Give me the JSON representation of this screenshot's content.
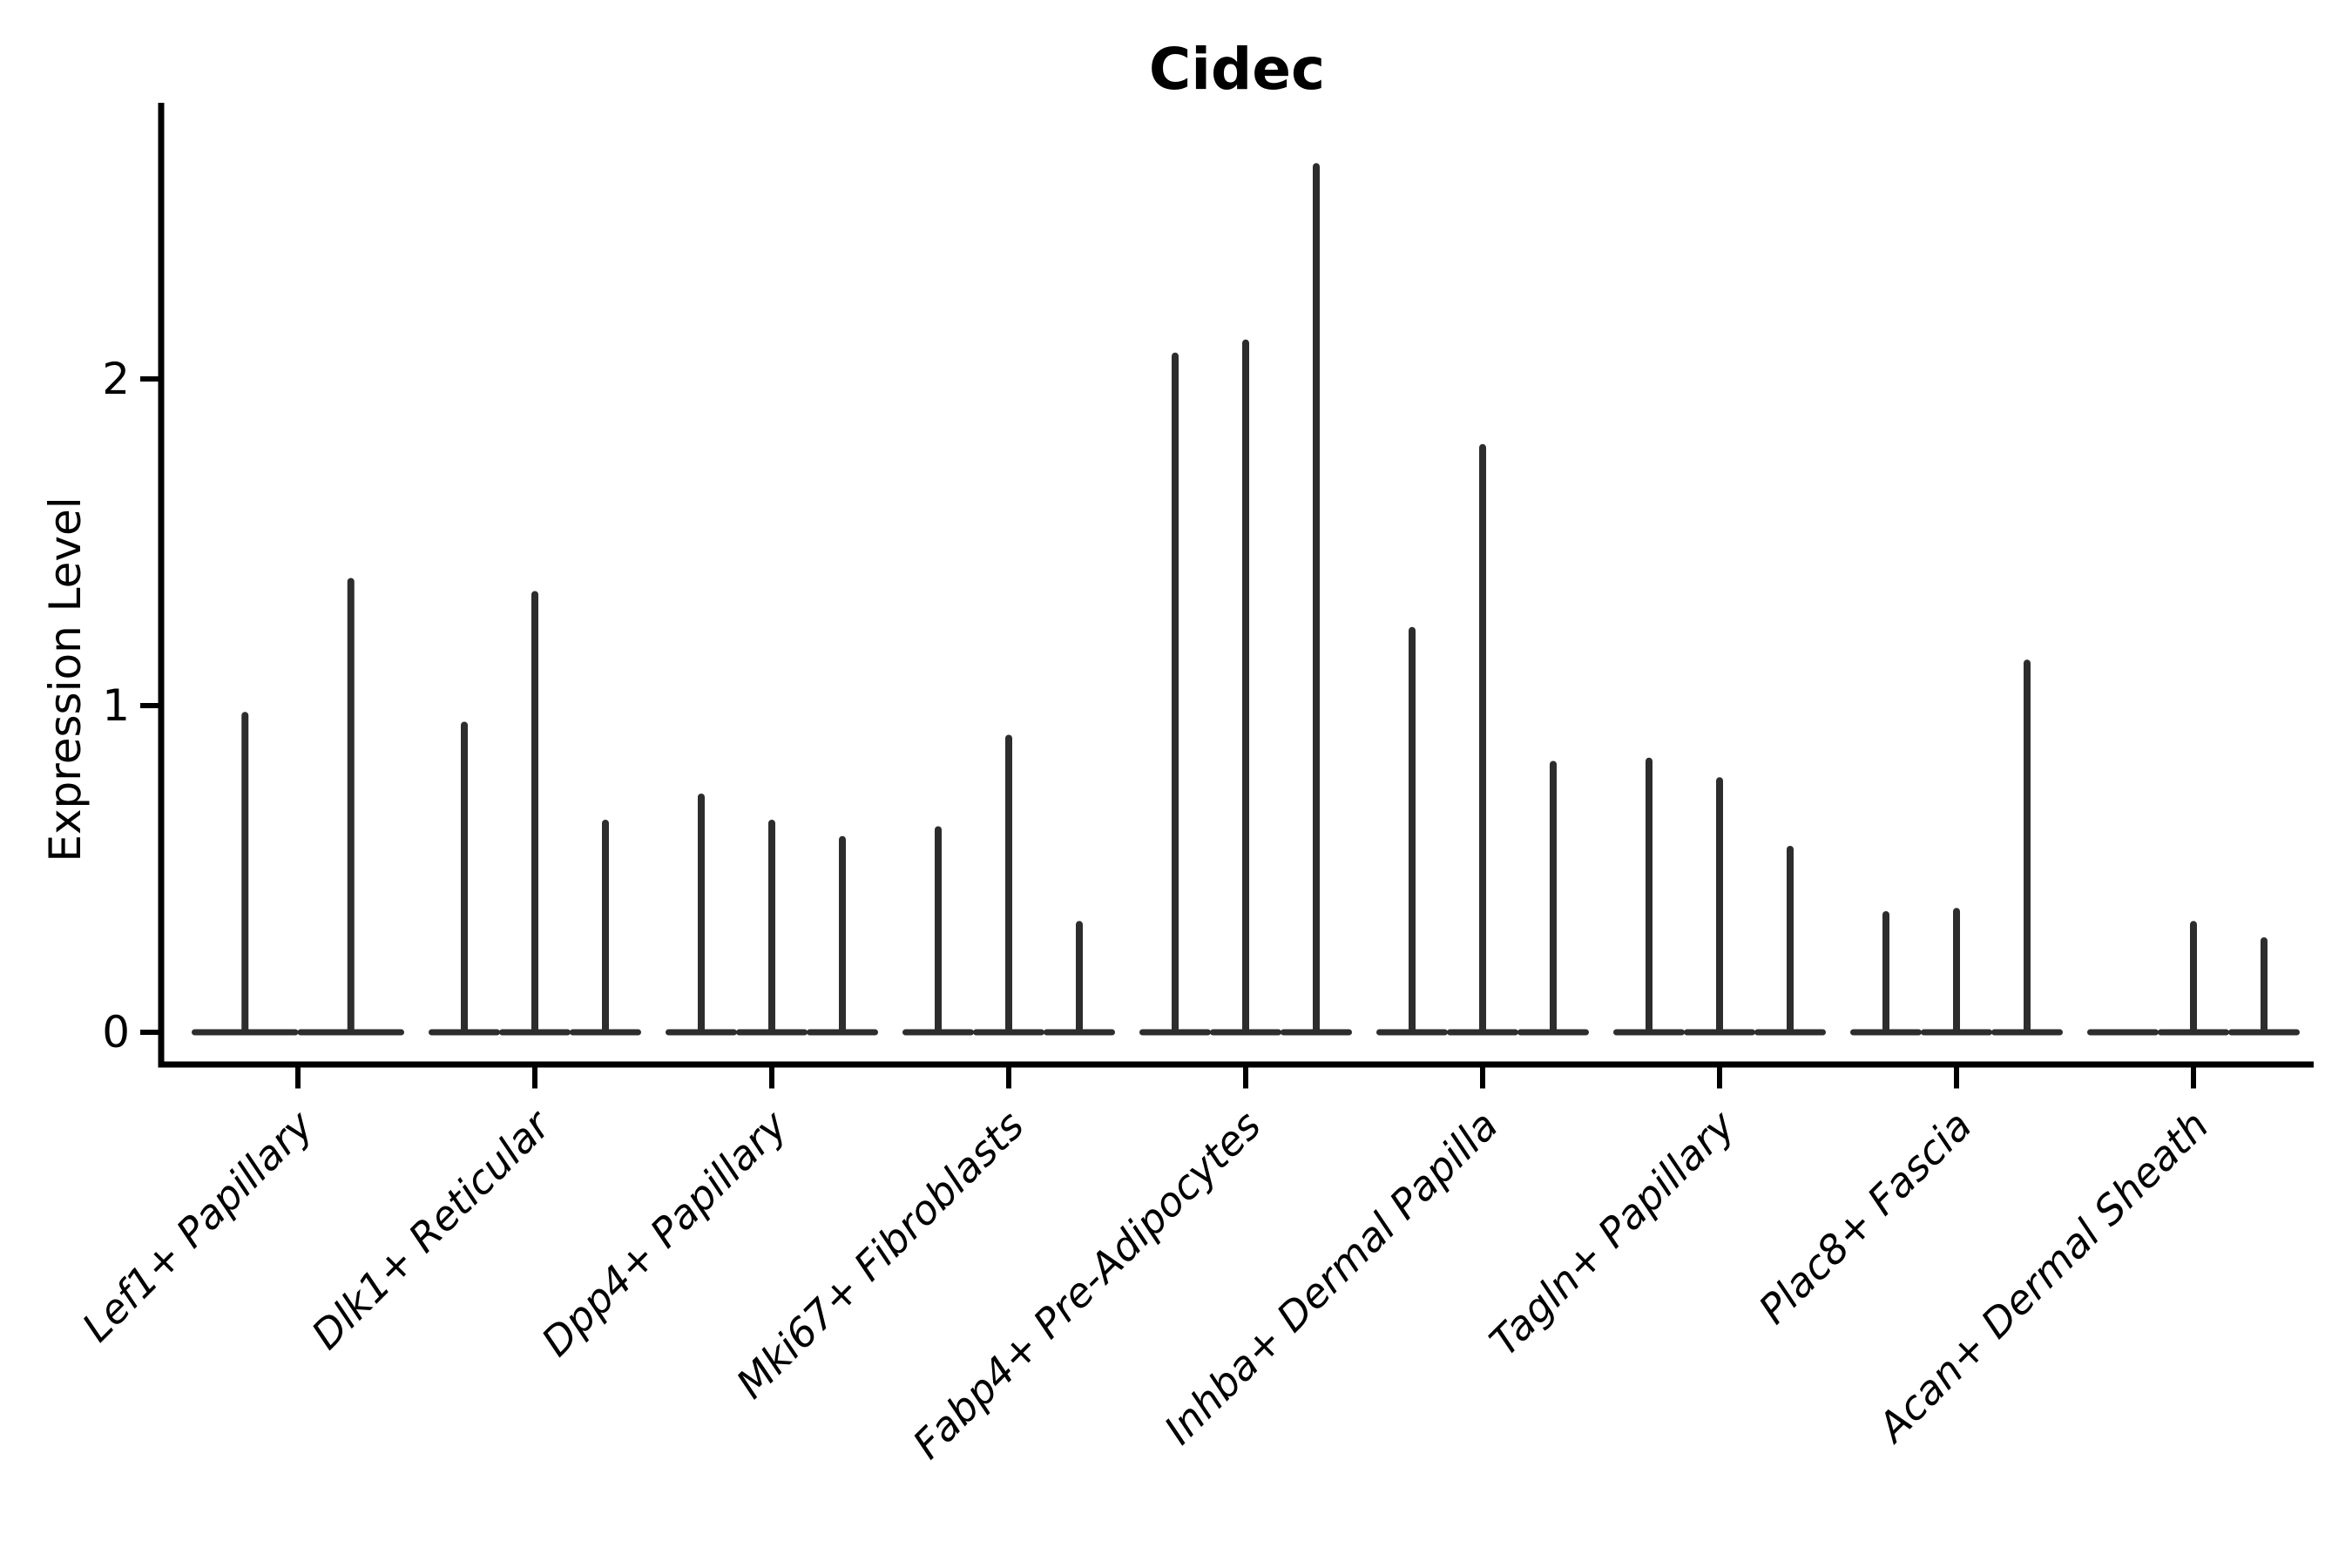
{
  "title": "Cidec",
  "chart_data": {
    "type": "violin",
    "title": "Cidec",
    "xlabel": "",
    "ylabel": "Expression Level",
    "ylim": [
      0,
      2.85
    ],
    "yticks": [
      0,
      1,
      2
    ],
    "grid": false,
    "legend": "none",
    "note": "Each category shows thin collapsed violins (max expression spikes with flat zero-density feet)",
    "categories": [
      "Lef1+ Papillary",
      "Dlk1+ Reticular",
      "Dpp4+ Papillary",
      "Mki67+ Fibroblasts",
      "Fabp4+ Pre-Adipocytes",
      "Inhba+ Dermal Papilla",
      "Tagln+ Papillary",
      "Plac8+ Fascia",
      "Acan+ Dermal Sheath"
    ],
    "groups": [
      {
        "label": "Lef1+ Papillary",
        "violin_max_values": [
          0.97,
          1.38
        ]
      },
      {
        "label": "Dlk1+ Reticular",
        "violin_max_values": [
          0.94,
          1.34,
          0.64
        ]
      },
      {
        "label": "Dpp4+ Papillary",
        "violin_max_values": [
          0.72,
          0.64,
          0.59
        ]
      },
      {
        "label": "Mki67+ Fibroblasts",
        "violin_max_values": [
          0.62,
          0.9,
          0.33
        ]
      },
      {
        "label": "Fabp4+ Pre-Adipocytes",
        "violin_max_values": [
          2.07,
          2.11,
          2.65
        ]
      },
      {
        "label": "Inhba+ Dermal Papilla",
        "violin_max_values": [
          1.23,
          1.79,
          0.82
        ]
      },
      {
        "label": "Tagln+ Papillary",
        "violin_max_values": [
          0.83,
          0.77,
          0.56
        ]
      },
      {
        "label": "Plac8+ Fascia",
        "violin_max_values": [
          0.36,
          0.37,
          1.13
        ]
      },
      {
        "label": "Acan+ Dermal Sheath",
        "violin_max_values": [
          0.0,
          0.33,
          0.28
        ]
      }
    ],
    "colors": {
      "violin": "#2d2d2d",
      "axis": "#000000",
      "text": "#000000",
      "background": "#ffffff"
    }
  }
}
